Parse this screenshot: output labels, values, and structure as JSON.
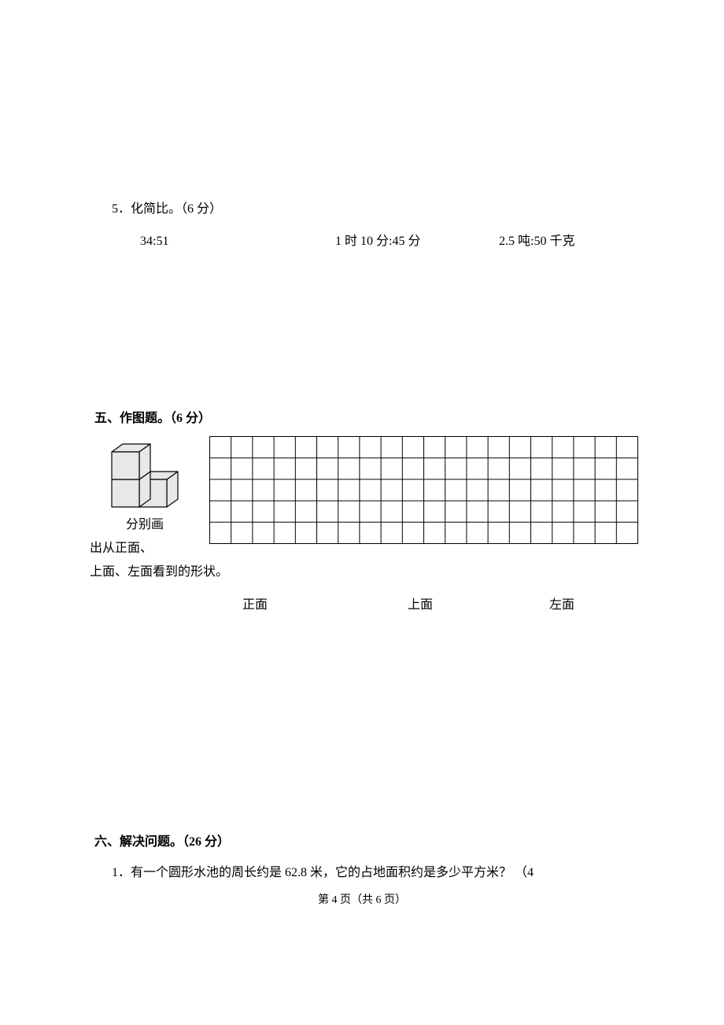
{
  "q5": {
    "title": "5．化简比。（6 分）",
    "a": "34:51",
    "b": "1 时 10 分:45 分",
    "c": "2.5 吨:50 千克"
  },
  "section5": {
    "heading": "五、作图题。（6 分）",
    "text1": "分别画",
    "text2": "出从正面、",
    "text3": "上面、左面看到的形状。",
    "label_front": "正面",
    "label_top": "上面",
    "label_left": "左面"
  },
  "section6": {
    "heading": "六、解决问题。（26 分）",
    "q1": "1．有一个圆形水池的周长约是 62.8 米，它的占地面积约是多少平方米？ （4"
  },
  "page_num": "第 4 页（共 6 页）",
  "cube": {
    "face_fill": "#e8e8e8",
    "stroke": "#000000",
    "stroke_width": 1.2
  },
  "grid": {
    "cols": 20,
    "rows": 5,
    "cell": 27.2,
    "stroke": "#000000",
    "stroke_width": 1
  }
}
